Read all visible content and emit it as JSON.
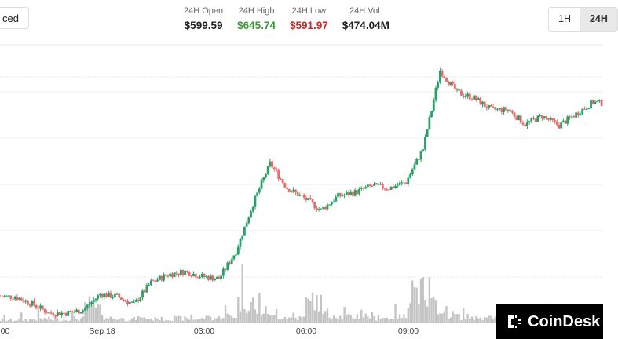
{
  "toolbar": {
    "advanced_label": "ced"
  },
  "stats": [
    {
      "label": "24H Open",
      "value": "$599.59",
      "color": "#222222"
    },
    {
      "label": "24H High",
      "value": "$645.74",
      "color": "#3a9a3a"
    },
    {
      "label": "24H Low",
      "value": "$591.97",
      "color": "#c62828"
    },
    {
      "label": "24H Vol.",
      "value": "$474.04M",
      "color": "#222222"
    }
  ],
  "ranges": [
    {
      "label": "1H"
    },
    {
      "label": "24H",
      "active": true
    }
  ],
  "logo": {
    "text": "CoinDesk"
  },
  "chart_data": {
    "type": "candlestick",
    "interval_minutes": 30,
    "x_start": "Sep 17 21:00",
    "x_tick_labels": [
      ":00",
      "Sep 18",
      "03:00",
      "06:00",
      "09:00"
    ],
    "grid": "horizontal",
    "up_color": "#26a269",
    "down_color": "#e66a6a",
    "volume_color": "#c4c4c4",
    "closes": [
      595.68,
      594.16,
      592.15,
      592.15,
      592.82,
      596.18,
      595.68,
      594.0,
      598.7,
      600.4,
      601.05,
      600.0,
      599.5,
      605.4,
      615.5,
      624.2,
      618.9,
      616.8,
      614.2,
      617.2,
      618.0,
      619.4,
      618.9,
      620.2,
      627.3,
      644.1,
      639.4,
      638.2,
      635.7,
      635.7,
      632.6,
      634.3,
      632.3,
      634.8,
      637.3,
      637.0
    ],
    "volume_relative": [
      6,
      7,
      8,
      7,
      9,
      28,
      10,
      8,
      9,
      8,
      9,
      8,
      10,
      14,
      40,
      22,
      12,
      10,
      40,
      16,
      12,
      14,
      10,
      12,
      60,
      34,
      16,
      12,
      10,
      10,
      12,
      10,
      14,
      10,
      10,
      10
    ]
  }
}
